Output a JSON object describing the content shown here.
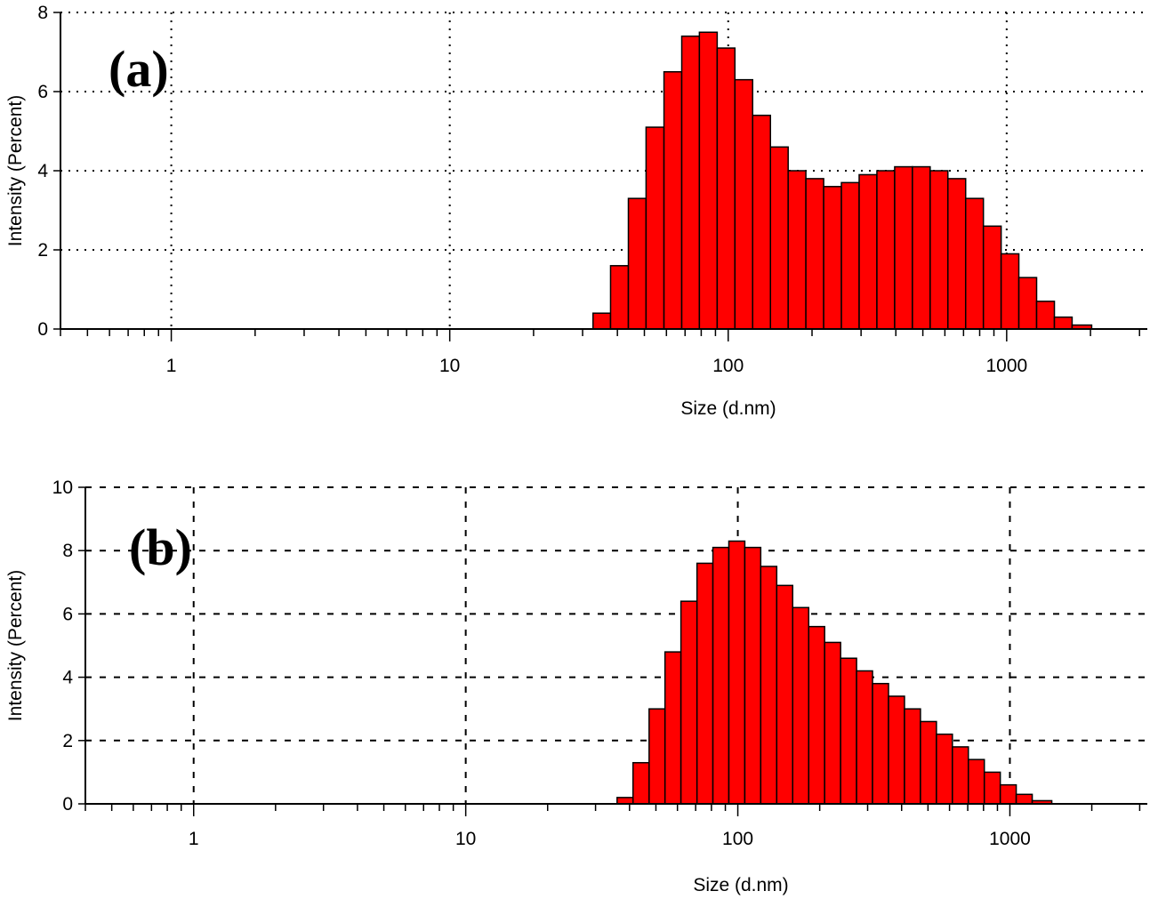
{
  "chart_data": [
    {
      "type": "bar",
      "panel_label": "(a)",
      "xlabel": "Size (d.nm)",
      "ylabel": "Intensity (Percent)",
      "x_scale": "log",
      "xlim": [
        0.4,
        3200
      ],
      "ylim": [
        0,
        8
      ],
      "yticks": [
        0,
        2,
        4,
        6,
        8
      ],
      "xticks": [
        1,
        10,
        100,
        1000
      ],
      "grid": "dotted",
      "bar_color": "#ff0000",
      "bin_edges": [
        32.7,
        37.8,
        43.8,
        50.7,
        58.8,
        68.1,
        78.8,
        91.3,
        105.7,
        122.4,
        141.8,
        164.2,
        190.1,
        220.2,
        255.0,
        295.3,
        342.0,
        396.1,
        458.7,
        531.2,
        615.1,
        712.4,
        825.0,
        955.4,
        1106.0,
        1281.0,
        1484.0,
        1718.0
      ],
      "values": [
        0.4,
        1.6,
        3.3,
        5.1,
        6.5,
        7.4,
        7.5,
        7.1,
        6.3,
        5.4,
        4.6,
        4.0,
        3.8,
        3.6,
        3.7,
        3.9,
        4.0,
        4.1,
        4.1,
        4.0,
        3.8,
        3.3,
        2.6,
        1.9,
        1.3,
        0.7,
        0.3,
        0.1
      ]
    },
    {
      "type": "bar",
      "panel_label": "(b)",
      "xlabel": "Size (d.nm)",
      "ylabel": "Intensity (Percent)",
      "x_scale": "log",
      "xlim": [
        0.4,
        3200
      ],
      "ylim": [
        0,
        10
      ],
      "yticks": [
        0,
        2,
        4,
        6,
        8,
        10
      ],
      "xticks": [
        1,
        10,
        100,
        1000
      ],
      "grid": "dashed",
      "bar_color": "#ff0000",
      "bin_edges": [
        36.0,
        41.2,
        47.2,
        54.0,
        61.8,
        70.8,
        81.0,
        92.7,
        106.1,
        121.4,
        139.0,
        159.1,
        182.2,
        208.5,
        238.7,
        273.2,
        312.7,
        358.0,
        409.8,
        469.1,
        537.0,
        614.7,
        703.6,
        805.4,
        921.9,
        1055.0,
        1208.0
      ],
      "values": [
        0.2,
        1.3,
        3.0,
        4.8,
        6.4,
        7.6,
        8.1,
        8.3,
        8.1,
        7.5,
        6.9,
        6.2,
        5.6,
        5.1,
        4.6,
        4.2,
        3.8,
        3.4,
        3.0,
        2.6,
        2.2,
        1.8,
        1.4,
        1.0,
        0.6,
        0.3,
        0.1
      ]
    }
  ]
}
